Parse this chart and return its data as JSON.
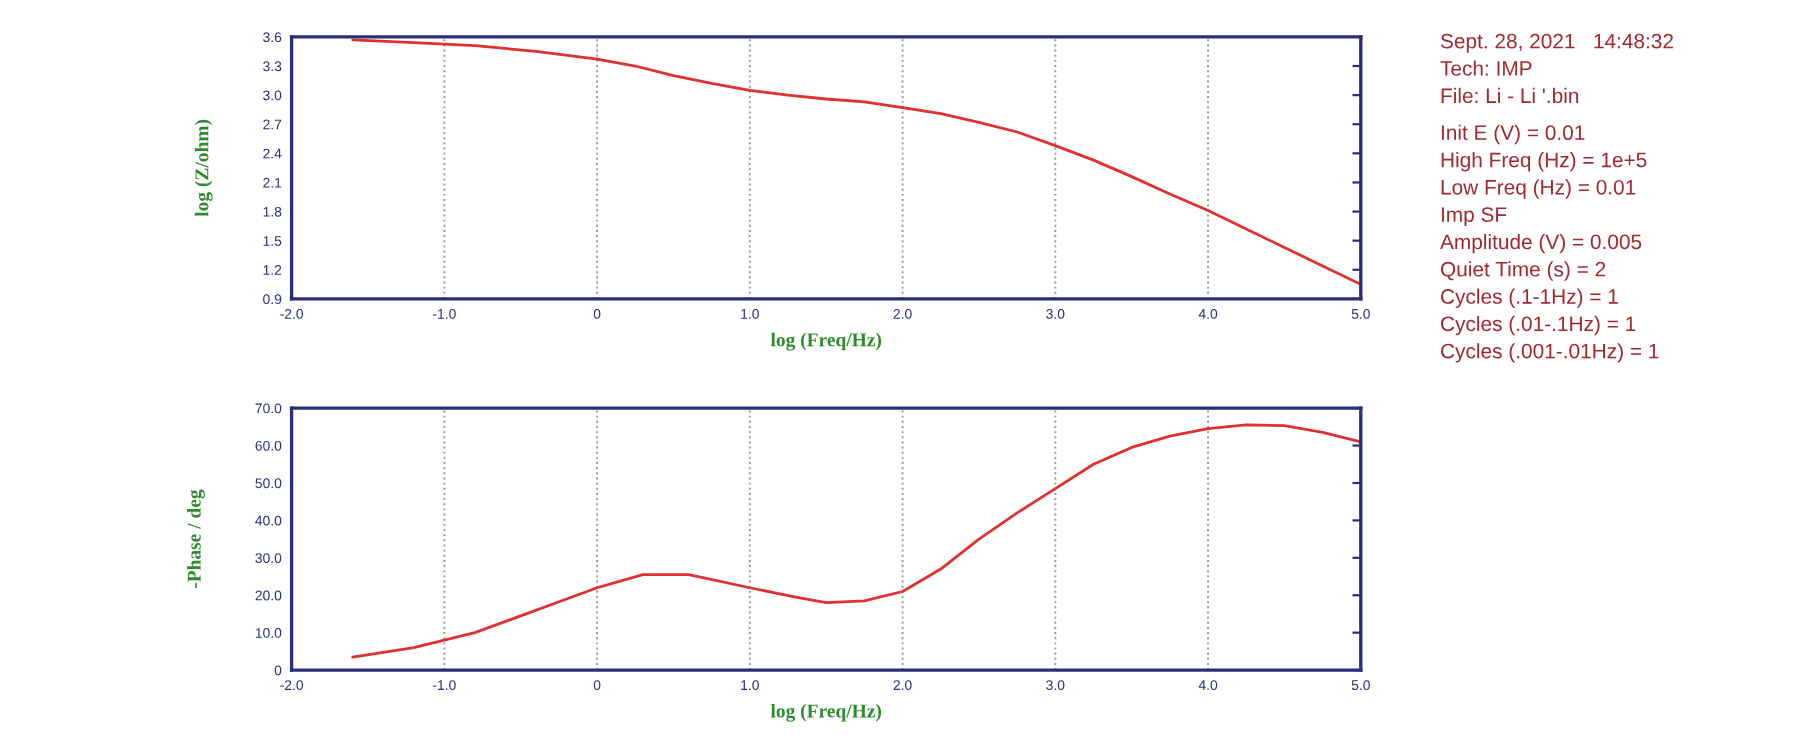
{
  "chart_data": [
    {
      "type": "line",
      "xlabel": "log (Freq/Hz)",
      "ylabel": "log (Z/ohm)",
      "x": [
        -1.6,
        -1.2,
        -0.8,
        -0.4,
        0,
        0.25,
        0.5,
        0.75,
        1.0,
        1.25,
        1.5,
        1.75,
        2.0,
        2.25,
        2.5,
        2.75,
        3.0,
        3.25,
        3.5,
        3.75,
        4.0,
        4.25,
        4.5,
        4.75,
        5.0
      ],
      "series": [
        {
          "color": "#e03030",
          "values": [
            3.57,
            3.54,
            3.51,
            3.45,
            3.37,
            3.3,
            3.2,
            3.12,
            3.05,
            3.0,
            2.96,
            2.93,
            2.87,
            2.81,
            2.72,
            2.62,
            2.48,
            2.33,
            2.16,
            1.98,
            1.81,
            1.62,
            1.43,
            1.24,
            1.05
          ]
        }
      ],
      "xlim": [
        -2.0,
        5.0
      ],
      "ylim": [
        0.9,
        3.6
      ],
      "xticks": [
        {
          "value": -2.0,
          "label": "-2.0"
        },
        {
          "value": -1.0,
          "label": "-1.0"
        },
        0,
        {
          "value": 1.0,
          "label": "1.0"
        },
        {
          "value": 2.0,
          "label": "2.0"
        },
        {
          "value": 3.0,
          "label": "3.0"
        },
        {
          "value": 4.0,
          "label": "4.0"
        },
        {
          "value": 5.0,
          "label": "5.0"
        }
      ],
      "yticks": [
        0.9,
        1.2,
        1.5,
        1.8,
        2.1,
        2.4,
        2.7,
        {
          "value": 3.0,
          "label": "3.0"
        },
        3.3,
        3.6
      ],
      "grid": "x",
      "line_style": "solid",
      "annotations": [
        "Sept. 28, 2021   14:48:32",
        "Tech: IMP",
        "File: Li - Li '.bin",
        "Init E (V) = 0.01",
        "High Freq (Hz) = 1e+5",
        "Low Freq (Hz) = 0.01",
        "Imp SF",
        "Amplitude (V) = 0.005",
        "Quiet Time (s) = 2",
        "Cycles (.1-1Hz) = 1",
        "Cycles (.01-.1Hz) = 1",
        "Cycles (.001-.01Hz) = 1"
      ]
    },
    {
      "type": "line",
      "xlabel": "log (Freq/Hz)",
      "ylabel": "-Phase / deg",
      "x": [
        -1.6,
        -1.2,
        -1.0,
        -0.8,
        -0.5,
        -0.2,
        0,
        0.3,
        0.6,
        1.0,
        1.3,
        1.5,
        1.75,
        2.0,
        2.25,
        2.5,
        2.75,
        3.0,
        3.25,
        3.5,
        3.75,
        4.0,
        4.25,
        4.5,
        4.75,
        5.0
      ],
      "series": [
        {
          "color": "#e03030",
          "values": [
            3.5,
            6,
            8,
            10,
            14.5,
            19,
            22,
            25.5,
            25.5,
            22,
            19.5,
            18,
            18.5,
            21,
            27,
            35,
            42,
            48.5,
            55,
            59.5,
            62.5,
            64.5,
            65.5,
            65.3,
            63.5,
            61
          ]
        }
      ],
      "xlim": [
        -2.0,
        5.0
      ],
      "ylim": [
        0,
        70.0
      ],
      "xticks": [
        {
          "value": -2.0,
          "label": "-2.0"
        },
        {
          "value": -1.0,
          "label": "-1.0"
        },
        0,
        {
          "value": 1.0,
          "label": "1.0"
        },
        {
          "value": 2.0,
          "label": "2.0"
        },
        {
          "value": 3.0,
          "label": "3.0"
        },
        {
          "value": 4.0,
          "label": "4.0"
        },
        {
          "value": 5.0,
          "label": "5.0"
        }
      ],
      "yticks": [
        0,
        {
          "value": 10,
          "label": "10.0"
        },
        {
          "value": 20,
          "label": "20.0"
        },
        {
          "value": 30,
          "label": "30.0"
        },
        {
          "value": 40,
          "label": "40.0"
        },
        {
          "value": 50,
          "label": "50.0"
        },
        {
          "value": 60,
          "label": "60.0"
        },
        {
          "value": 70,
          "label": "70.0"
        }
      ],
      "grid": "x",
      "line_style": "solid"
    }
  ]
}
